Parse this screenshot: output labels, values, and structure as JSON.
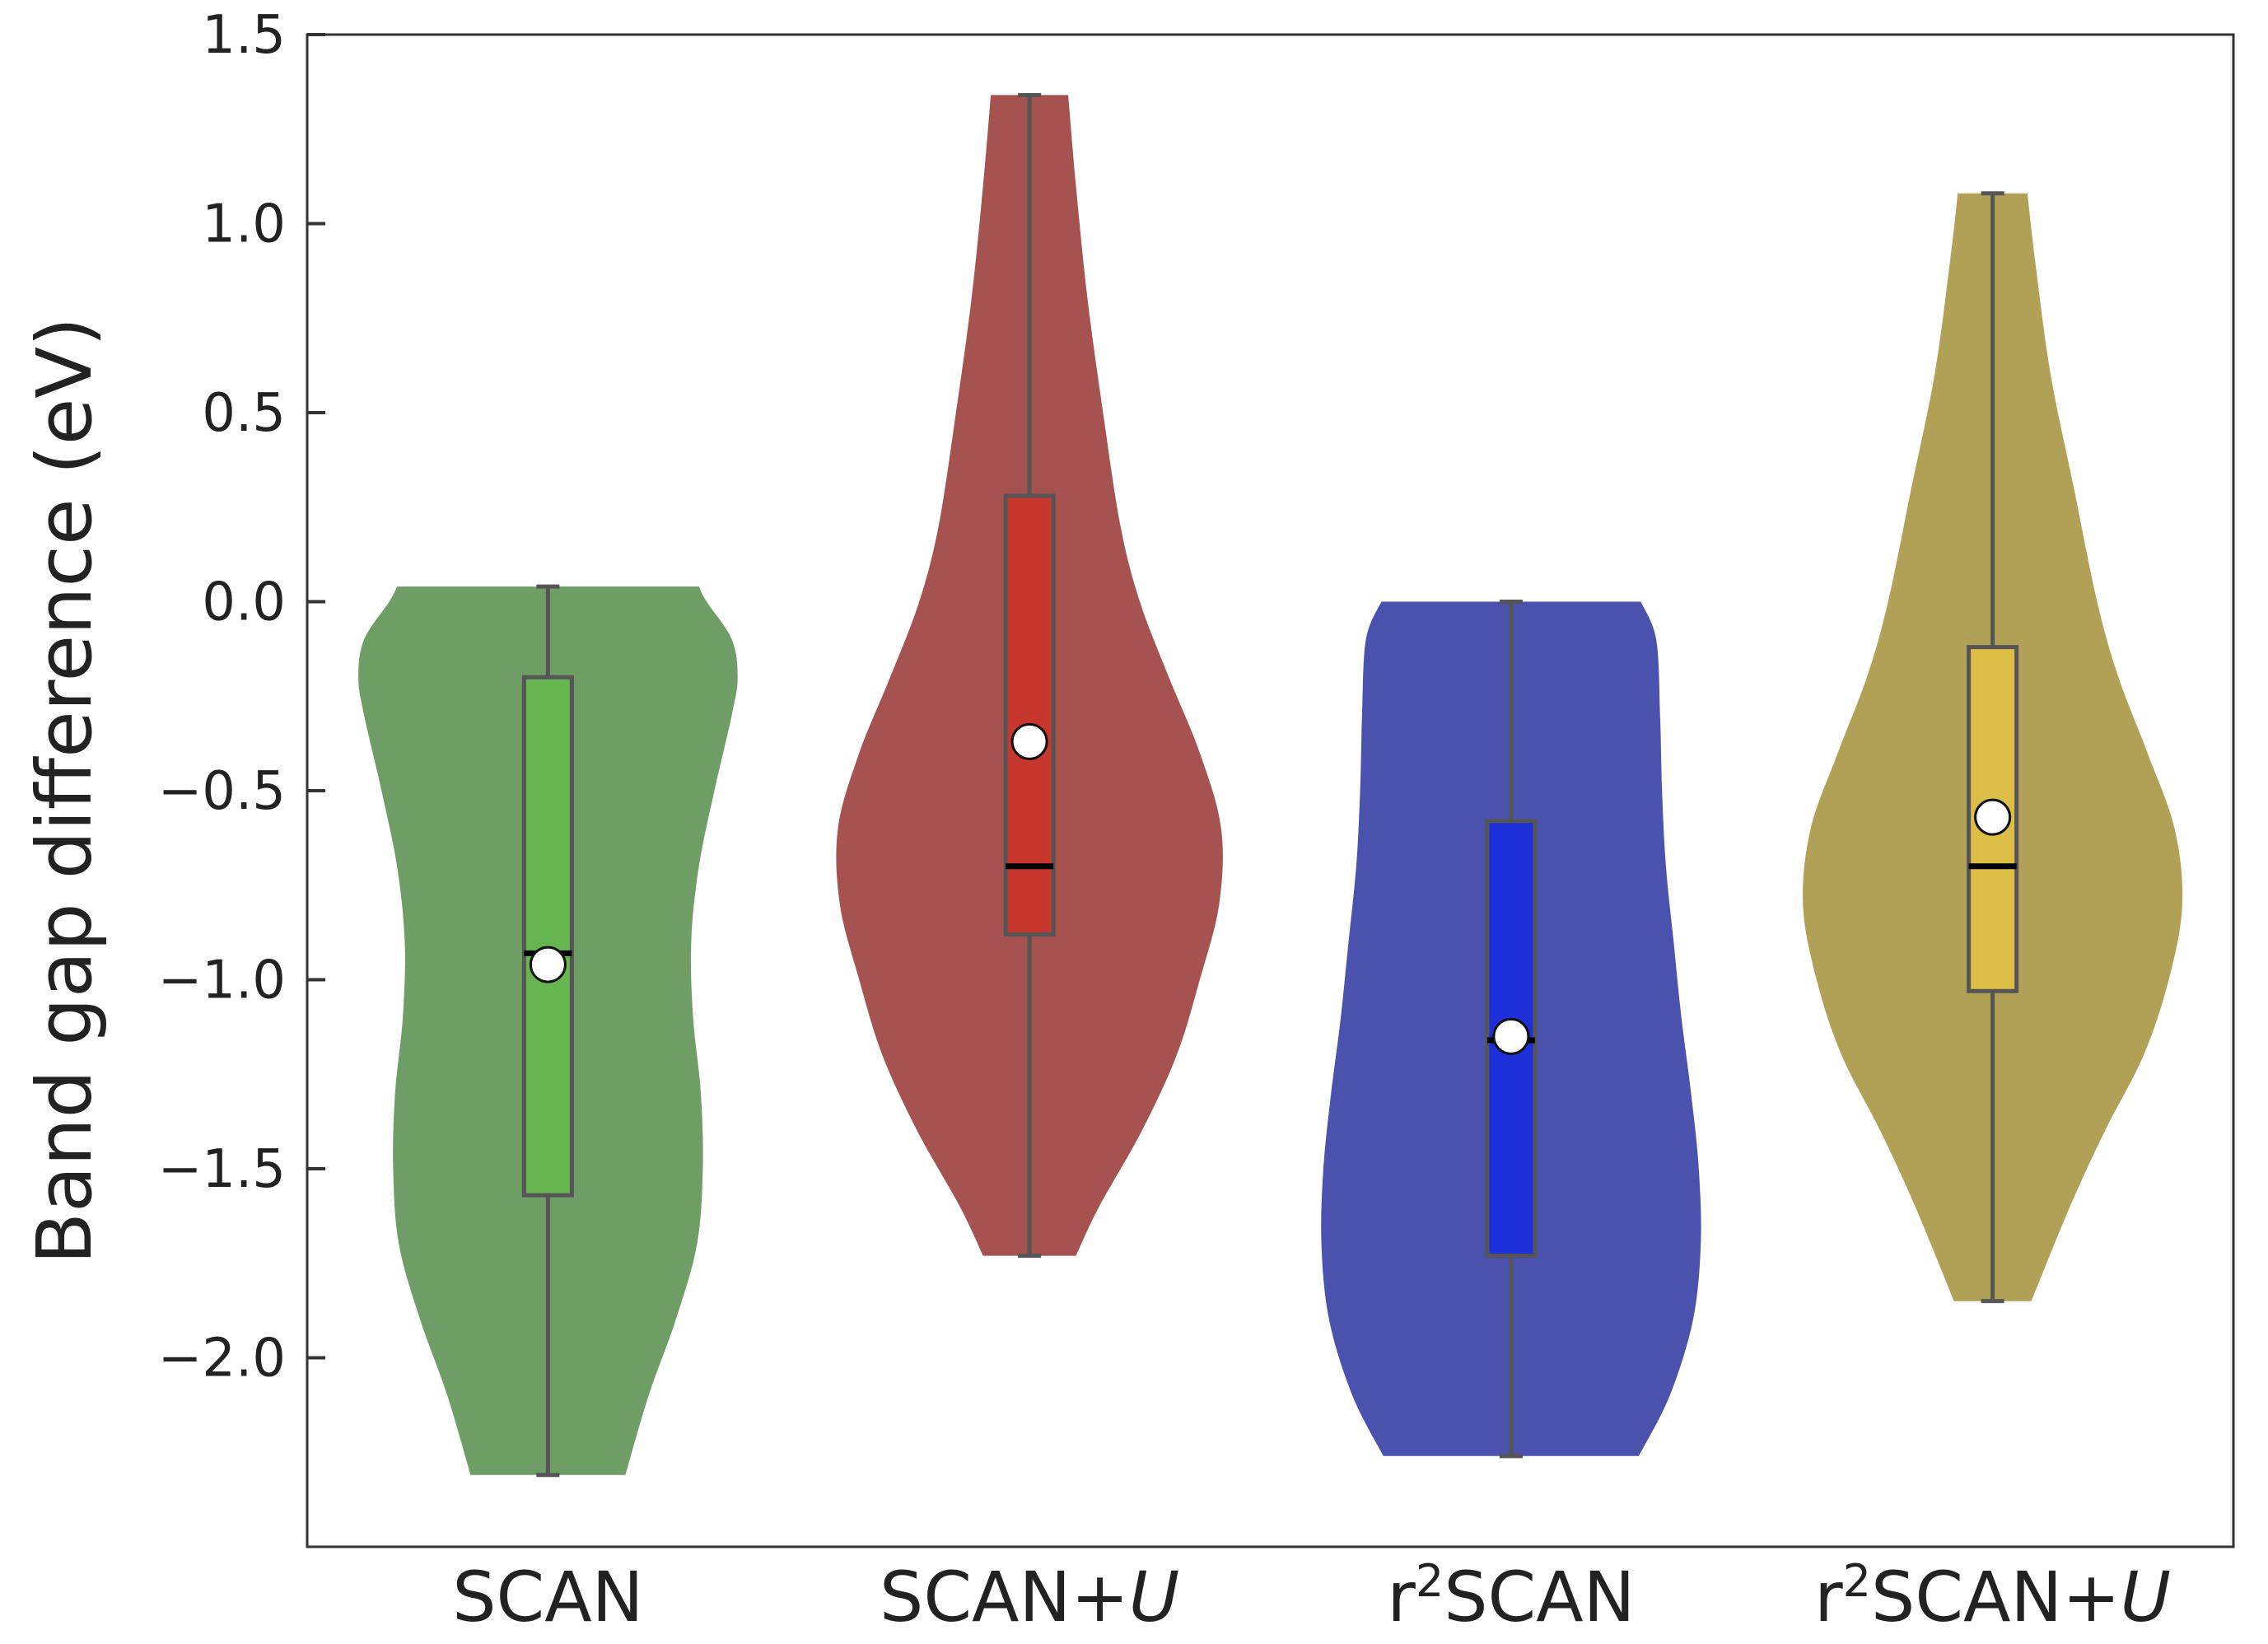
{
  "chart_data": {
    "type": "violin",
    "title": "",
    "xlabel": "",
    "ylabel": "Band gap difference (eV)",
    "ylim": [
      -2.5,
      1.5
    ],
    "yticks": [
      {
        "value": 1.5,
        "label": "1.5"
      },
      {
        "value": 1.0,
        "label": "1.0"
      },
      {
        "value": 0.5,
        "label": "0.5"
      },
      {
        "value": 0.0,
        "label": "0.0"
      },
      {
        "value": -0.5,
        "label": "−0.5"
      },
      {
        "value": -1.0,
        "label": "−1.0"
      },
      {
        "value": -1.5,
        "label": "−1.5"
      },
      {
        "value": -2.0,
        "label": "−2.0"
      }
    ],
    "grid": false,
    "series": [
      {
        "label_main": "SCAN",
        "label_sup": "",
        "label_pre": "",
        "label_italic": "",
        "color": "#6e9e66",
        "box_color": "#66b551",
        "min": -2.31,
        "q1": -1.57,
        "median": -0.93,
        "mean": -0.96,
        "q3": -0.2,
        "max": 0.04,
        "profile": [
          [
            -2.31,
            0.4
          ],
          [
            -2.1,
            0.52
          ],
          [
            -1.9,
            0.66
          ],
          [
            -1.7,
            0.77
          ],
          [
            -1.5,
            0.8
          ],
          [
            -1.3,
            0.79
          ],
          [
            -1.1,
            0.75
          ],
          [
            -0.9,
            0.74
          ],
          [
            -0.7,
            0.78
          ],
          [
            -0.5,
            0.86
          ],
          [
            -0.3,
            0.95
          ],
          [
            -0.2,
            0.98
          ],
          [
            -0.1,
            0.95
          ],
          [
            0.0,
            0.82
          ],
          [
            0.04,
            0.78
          ]
        ]
      },
      {
        "label_main": "SCAN+",
        "label_sup": "",
        "label_pre": "",
        "label_italic": "U",
        "color": "#a65250",
        "box_color": "#c8372d",
        "min": -1.73,
        "q1": -0.88,
        "median": -0.7,
        "mean": -0.37,
        "q3": 0.28,
        "max": 1.34,
        "profile": [
          [
            -1.73,
            0.24
          ],
          [
            -1.6,
            0.36
          ],
          [
            -1.4,
            0.58
          ],
          [
            -1.2,
            0.76
          ],
          [
            -1.0,
            0.88
          ],
          [
            -0.8,
            0.98
          ],
          [
            -0.6,
            0.99
          ],
          [
            -0.4,
            0.88
          ],
          [
            -0.2,
            0.72
          ],
          [
            0.0,
            0.57
          ],
          [
            0.2,
            0.47
          ],
          [
            0.5,
            0.38
          ],
          [
            0.8,
            0.3
          ],
          [
            1.1,
            0.24
          ],
          [
            1.34,
            0.2
          ]
        ]
      },
      {
        "label_main": "SCAN",
        "label_sup": "2",
        "label_pre": "r",
        "label_italic": "",
        "color": "#4a52ae",
        "box_color": "#1c2fd9",
        "min": -2.26,
        "q1": -1.73,
        "median": -1.16,
        "mean": -1.15,
        "q3": -0.58,
        "max": 0.0,
        "profile": [
          [
            -2.26,
            0.66
          ],
          [
            -2.1,
            0.82
          ],
          [
            -1.9,
            0.94
          ],
          [
            -1.7,
            0.98
          ],
          [
            -1.5,
            0.97
          ],
          [
            -1.3,
            0.93
          ],
          [
            -1.1,
            0.88
          ],
          [
            -0.9,
            0.84
          ],
          [
            -0.7,
            0.8
          ],
          [
            -0.5,
            0.78
          ],
          [
            -0.3,
            0.77
          ],
          [
            -0.1,
            0.75
          ],
          [
            0.0,
            0.67
          ]
        ]
      },
      {
        "label_main": "SCAN+",
        "label_sup": "2",
        "label_pre": "r",
        "label_italic": "U",
        "color": "#b0a157",
        "box_color": "#dcbd46",
        "min": -1.85,
        "q1": -1.03,
        "median": -0.7,
        "mean": -0.57,
        "q3": -0.12,
        "max": 1.08,
        "profile": [
          [
            -1.85,
            0.2
          ],
          [
            -1.6,
            0.4
          ],
          [
            -1.4,
            0.58
          ],
          [
            -1.2,
            0.78
          ],
          [
            -1.0,
            0.91
          ],
          [
            -0.8,
            0.98
          ],
          [
            -0.6,
            0.94
          ],
          [
            -0.4,
            0.8
          ],
          [
            -0.2,
            0.65
          ],
          [
            0.0,
            0.54
          ],
          [
            0.3,
            0.42
          ],
          [
            0.6,
            0.3
          ],
          [
            0.9,
            0.22
          ],
          [
            1.08,
            0.18
          ]
        ]
      }
    ]
  }
}
